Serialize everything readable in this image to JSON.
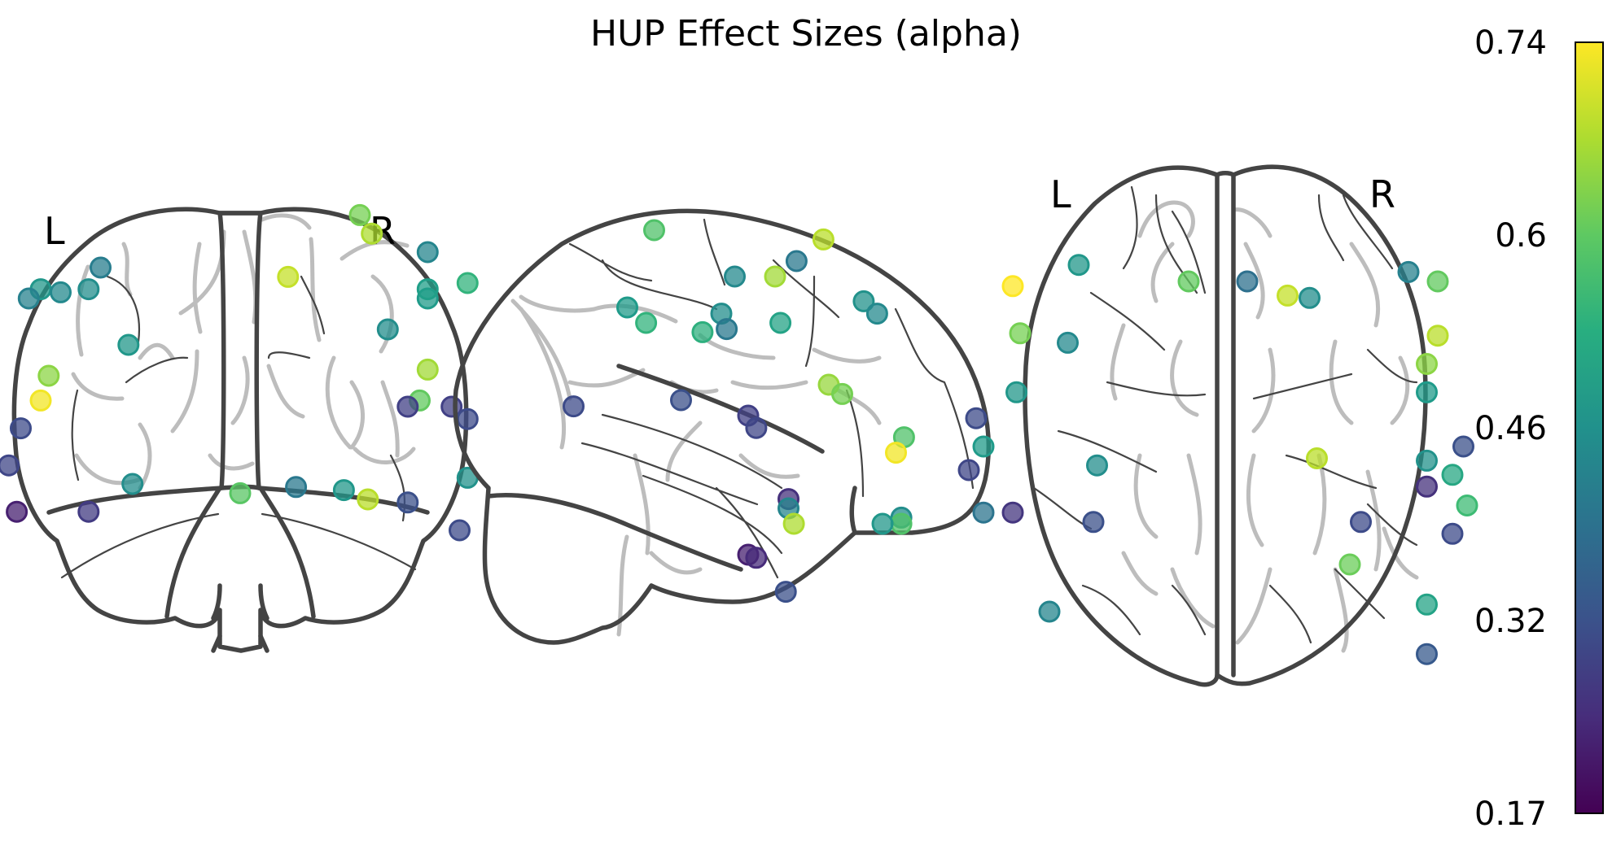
{
  "chart_data": {
    "type": "scatter",
    "title": "HUP Effect Sizes (alpha)",
    "panels": {
      "coronal": {
        "labels": [
          "L",
          "R"
        ],
        "points": [
          {
            "x": -35,
            "y": 45,
            "value": 0.41
          },
          {
            "x": -50,
            "y": 38,
            "value": 0.47
          },
          {
            "x": -45,
            "y": 37,
            "value": 0.44
          },
          {
            "x": -53,
            "y": 35,
            "value": 0.42
          },
          {
            "x": -38,
            "y": 38,
            "value": 0.45
          },
          {
            "x": -28,
            "y": 20,
            "value": 0.47
          },
          {
            "x": 30,
            "y": 62,
            "value": 0.62
          },
          {
            "x": 33,
            "y": 56,
            "value": 0.67
          },
          {
            "x": 12,
            "y": 42,
            "value": 0.69
          },
          {
            "x": 47,
            "y": 50,
            "value": 0.43
          },
          {
            "x": 57,
            "y": 40,
            "value": 0.54
          },
          {
            "x": 47,
            "y": 35,
            "value": 0.48
          },
          {
            "x": 47,
            "y": 38,
            "value": 0.49
          },
          {
            "x": 37,
            "y": 25,
            "value": 0.45
          },
          {
            "x": 47,
            "y": 12,
            "value": 0.66
          },
          {
            "x": 45,
            "y": 2,
            "value": 0.6
          },
          {
            "x": 42,
            "y": 0,
            "value": 0.28
          },
          {
            "x": 53,
            "y": 0,
            "value": 0.28
          },
          {
            "x": 57,
            "y": -4,
            "value": 0.3
          },
          {
            "x": -48,
            "y": 10,
            "value": 0.64
          },
          {
            "x": -50,
            "y": 2,
            "value": 0.73
          },
          {
            "x": -55,
            "y": -7,
            "value": 0.3
          },
          {
            "x": -58,
            "y": -19,
            "value": 0.29
          },
          {
            "x": -56,
            "y": -34,
            "value": 0.22
          },
          {
            "x": -38,
            "y": -34,
            "value": 0.27
          },
          {
            "x": -27,
            "y": -25,
            "value": 0.45
          },
          {
            "x": 0,
            "y": -28,
            "value": 0.59
          },
          {
            "x": 14,
            "y": -26,
            "value": 0.4
          },
          {
            "x": 26,
            "y": -27,
            "value": 0.47
          },
          {
            "x": 32,
            "y": -30,
            "value": 0.68
          },
          {
            "x": 42,
            "y": -31,
            "value": 0.31
          },
          {
            "x": 57,
            "y": -23,
            "value": 0.46
          },
          {
            "x": 55,
            "y": -40,
            "value": 0.3
          }
        ]
      },
      "sagittal": {
        "points": [
          {
            "x": 55,
            "y": 65,
            "value": 0.58
          },
          {
            "x": 65,
            "y": 40,
            "value": 0.48
          },
          {
            "x": 58,
            "y": 35,
            "value": 0.54
          },
          {
            "x": 37,
            "y": 32,
            "value": 0.53
          },
          {
            "x": 30,
            "y": 38,
            "value": 0.45
          },
          {
            "x": 25,
            "y": 50,
            "value": 0.44
          },
          {
            "x": 28,
            "y": 33,
            "value": 0.4
          },
          {
            "x": 8,
            "y": 35,
            "value": 0.5
          },
          {
            "x": 10,
            "y": 50,
            "value": 0.66
          },
          {
            "x": 2,
            "y": 55,
            "value": 0.4
          },
          {
            "x": -8,
            "y": 62,
            "value": 0.68
          },
          {
            "x": -23,
            "y": 42,
            "value": 0.46
          },
          {
            "x": -28,
            "y": 38,
            "value": 0.44
          },
          {
            "x": -10,
            "y": 15,
            "value": 0.65
          },
          {
            "x": -15,
            "y": 12,
            "value": 0.62
          },
          {
            "x": -38,
            "y": -2,
            "value": 0.58
          },
          {
            "x": -35,
            "y": -7,
            "value": 0.73
          },
          {
            "x": -37,
            "y": -28,
            "value": 0.45
          },
          {
            "x": -37,
            "y": -30,
            "value": 0.58
          },
          {
            "x": -30,
            "y": -30,
            "value": 0.47
          },
          {
            "x": 85,
            "y": 8,
            "value": 0.3
          },
          {
            "x": 45,
            "y": 10,
            "value": 0.31
          },
          {
            "x": 20,
            "y": 5,
            "value": 0.28
          },
          {
            "x": 17,
            "y": 1,
            "value": 0.29
          },
          {
            "x": 5,
            "y": -22,
            "value": 0.25
          },
          {
            "x": 5,
            "y": -25,
            "value": 0.43
          },
          {
            "x": 3,
            "y": -30,
            "value": 0.67
          },
          {
            "x": 20,
            "y": -40,
            "value": 0.22
          },
          {
            "x": 17,
            "y": -41,
            "value": 0.24
          },
          {
            "x": 6,
            "y": -52,
            "value": 0.31
          }
        ]
      },
      "axial": {
        "labels": [
          "L",
          "R"
        ],
        "points": [
          {
            "x": -58,
            "y": 58,
            "value": 0.74
          },
          {
            "x": -40,
            "y": 67,
            "value": 0.47
          },
          {
            "x": -56,
            "y": 38,
            "value": 0.62
          },
          {
            "x": -43,
            "y": 34,
            "value": 0.44
          },
          {
            "x": -10,
            "y": 60,
            "value": 0.6
          },
          {
            "x": 6,
            "y": 60,
            "value": 0.38
          },
          {
            "x": 17,
            "y": 54,
            "value": 0.69
          },
          {
            "x": 23,
            "y": 53,
            "value": 0.45
          },
          {
            "x": 50,
            "y": 64,
            "value": 0.42
          },
          {
            "x": 58,
            "y": 60,
            "value": 0.6
          },
          {
            "x": 58,
            "y": 37,
            "value": 0.68
          },
          {
            "x": 55,
            "y": 25,
            "value": 0.64
          },
          {
            "x": 55,
            "y": 13,
            "value": 0.48
          },
          {
            "x": -57,
            "y": 13,
            "value": 0.47
          },
          {
            "x": -68,
            "y": 2,
            "value": 0.3
          },
          {
            "x": -66,
            "y": -10,
            "value": 0.48
          },
          {
            "x": -70,
            "y": -20,
            "value": 0.29
          },
          {
            "x": -66,
            "y": -38,
            "value": 0.39
          },
          {
            "x": -58,
            "y": -38,
            "value": 0.26
          },
          {
            "x": -36,
            "y": -42,
            "value": 0.31
          },
          {
            "x": -35,
            "y": -18,
            "value": 0.45
          },
          {
            "x": 25,
            "y": -15,
            "value": 0.68
          },
          {
            "x": 55,
            "y": -16,
            "value": 0.46
          },
          {
            "x": 65,
            "y": -10,
            "value": 0.31
          },
          {
            "x": 62,
            "y": -22,
            "value": 0.51
          },
          {
            "x": 55,
            "y": -27,
            "value": 0.25
          },
          {
            "x": 66,
            "y": -35,
            "value": 0.56
          },
          {
            "x": 37,
            "y": -42,
            "value": 0.3
          },
          {
            "x": 62,
            "y": -47,
            "value": 0.3
          },
          {
            "x": 34,
            "y": -60,
            "value": 0.61
          },
          {
            "x": 55,
            "y": -77,
            "value": 0.5
          },
          {
            "x": 55,
            "y": -98,
            "value": 0.33
          },
          {
            "x": -48,
            "y": -80,
            "value": 0.43
          }
        ]
      }
    },
    "colorbar": {
      "colormap": "viridis",
      "vmin": 0.17,
      "vmax": 0.74,
      "tick_values": [
        0.74,
        0.6,
        0.46,
        0.32,
        0.17
      ],
      "tick_labels": [
        "0.74",
        "0.6",
        "0.46",
        "0.32",
        "0.17"
      ]
    }
  }
}
